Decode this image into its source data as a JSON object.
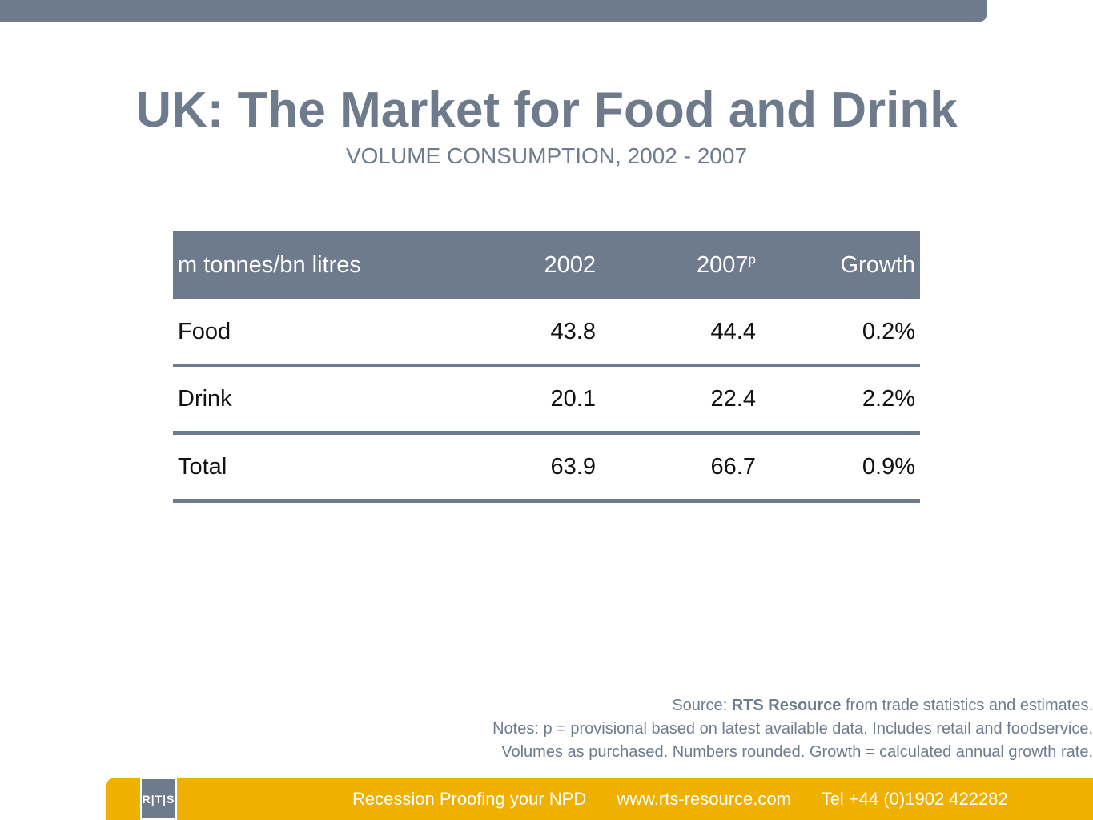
{
  "header": {
    "title": "UK: The Market for Food and Drink",
    "subtitle": "VOLUME CONSUMPTION, 2002 - 2007"
  },
  "table": {
    "columns": [
      "m tonnes/bn litres",
      "2002",
      "2007",
      "Growth"
    ],
    "col2_superscript": "p",
    "rows": [
      [
        "Food",
        "43.8",
        "44.4",
        "0.2%"
      ],
      [
        "Drink",
        "20.1",
        "22.4",
        "2.2%"
      ],
      [
        "Total",
        "63.9",
        "66.7",
        "0.9%"
      ]
    ]
  },
  "notes": {
    "source_prefix": "Source: ",
    "source_bold": "RTS Resource",
    "source_suffix": " from trade statistics and estimates.",
    "notes_text": "Notes: p = provisional based on latest available data. Includes retail and foodservice. Volumes as purchased. Numbers rounded. Growth = calculated annual growth rate."
  },
  "footer": {
    "logo_text": "R|T|S",
    "tagline": "Recession Proofing your NPD",
    "website": "www.rts-resource.com",
    "phone": "Tel +44 (0)1902 422282"
  },
  "colors": {
    "slate": "#6d7b8d",
    "gold": "#f0b000"
  }
}
